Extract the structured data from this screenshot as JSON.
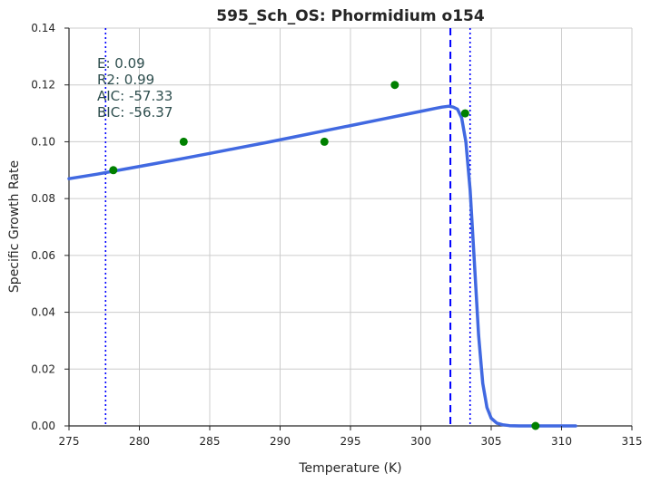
{
  "chart_data": {
    "type": "scatter",
    "title": "595_Sch_OS: Phormidium o154",
    "xlabel": "Temperature (K)",
    "ylabel": "Specific Growth Rate",
    "xlim": [
      275,
      315
    ],
    "ylim": [
      0,
      0.14
    ],
    "x_ticks": [
      275,
      280,
      285,
      290,
      295,
      300,
      305,
      310,
      315
    ],
    "y_ticks": [
      0.0,
      0.02,
      0.04,
      0.06,
      0.08,
      0.1,
      0.12,
      0.14
    ],
    "x_tick_labels": [
      "275",
      "280",
      "285",
      "290",
      "295",
      "300",
      "305",
      "310",
      "315"
    ],
    "y_tick_labels": [
      "0.00",
      "0.02",
      "0.04",
      "0.06",
      "0.08",
      "0.10",
      "0.12",
      "0.14"
    ],
    "grid": true,
    "points": [
      {
        "x": 278.15,
        "y": 0.09
      },
      {
        "x": 283.15,
        "y": 0.1
      },
      {
        "x": 293.15,
        "y": 0.1
      },
      {
        "x": 298.15,
        "y": 0.12
      },
      {
        "x": 303.15,
        "y": 0.11
      },
      {
        "x": 308.15,
        "y": 0.0
      }
    ],
    "fit_curve": {
      "x": [
        275,
        277,
        279,
        281,
        283,
        285,
        287,
        289,
        291,
        293,
        295,
        297,
        299,
        300,
        301,
        301.5,
        302,
        302.3,
        302.6,
        302.9,
        303.2,
        303.5,
        303.8,
        304.1,
        304.4,
        304.7,
        305.0,
        305.4,
        305.8,
        306.3,
        307,
        308,
        309,
        310,
        311
      ],
      "y": [
        0.087,
        0.0886,
        0.0904,
        0.0922,
        0.094,
        0.0959,
        0.0978,
        0.0997,
        0.1017,
        0.1037,
        0.1057,
        0.1077,
        0.1097,
        0.1107,
        0.1117,
        0.1122,
        0.1125,
        0.1122,
        0.1115,
        0.1085,
        0.1,
        0.083,
        0.058,
        0.032,
        0.015,
        0.0065,
        0.0027,
        0.001,
        0.0004,
        0.0001,
        0.0,
        0.0,
        0.0,
        0.0,
        0.0
      ],
      "color": "#4169e1"
    },
    "point_color": "#008000",
    "vertical_lines": [
      {
        "x": 277.6,
        "style": "dotted",
        "color": "#0000ff"
      },
      {
        "x": 302.1,
        "style": "dashed",
        "color": "#0000ff"
      },
      {
        "x": 303.5,
        "style": "dotted",
        "color": "#0000ff"
      }
    ],
    "annotations": [
      "E:  0.09",
      "R2:  0.99",
      "AIC: -57.33",
      "BIC: -56.37"
    ]
  }
}
